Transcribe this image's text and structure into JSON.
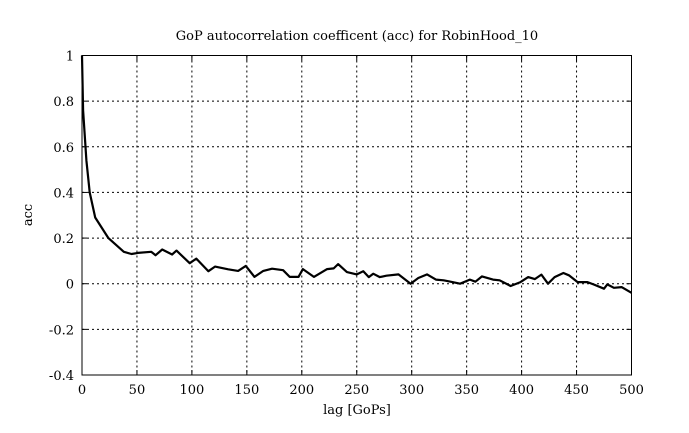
{
  "chart_data": {
    "type": "line",
    "title": "GoP autocorrelation coefficent (acc) for RobinHood_10",
    "xlabel": "lag [GoPs]",
    "ylabel": "acc",
    "xlim": [
      0,
      500
    ],
    "ylim": [
      -0.4,
      1
    ],
    "xticks": [
      0,
      50,
      100,
      150,
      200,
      250,
      300,
      350,
      400,
      450,
      500
    ],
    "xtick_labels": [
      "0",
      "50",
      "100",
      "150",
      "200",
      "250",
      "300",
      "350",
      "400",
      "450",
      "500"
    ],
    "yticks": [
      -0.4,
      -0.2,
      0,
      0.2,
      0.4,
      0.6,
      0.8,
      1
    ],
    "ytick_labels": [
      "-0.4",
      "-0.2",
      "0",
      "0.2",
      "0.4",
      "0.6",
      "0.8",
      "1"
    ],
    "grid": true,
    "series": [
      {
        "name": "acc",
        "color": "#000000",
        "x": [
          0,
          1,
          4,
          7,
          12,
          24,
          38,
          45,
          51,
          63,
          67,
          73,
          82,
          86,
          98,
          104,
          115,
          121,
          133,
          142,
          149,
          157,
          165,
          173,
          183,
          189,
          197,
          201,
          211,
          223,
          229,
          233,
          241,
          250,
          256,
          261,
          265,
          271,
          277,
          288,
          299,
          306,
          314,
          322,
          329,
          337,
          344,
          353,
          358,
          364,
          374,
          380,
          390,
          399,
          406,
          412,
          418,
          424,
          430,
          438,
          443,
          451,
          460,
          466,
          475,
          478,
          484,
          491,
          500
        ],
        "y": [
          1.0,
          0.76,
          0.54,
          0.4,
          0.29,
          0.2,
          0.14,
          0.13,
          0.135,
          0.14,
          0.125,
          0.15,
          0.128,
          0.145,
          0.09,
          0.11,
          0.055,
          0.075,
          0.063,
          0.056,
          0.078,
          0.03,
          0.056,
          0.066,
          0.059,
          0.03,
          0.03,
          0.064,
          0.03,
          0.064,
          0.067,
          0.086,
          0.051,
          0.041,
          0.055,
          0.029,
          0.044,
          0.029,
          0.035,
          0.041,
          0.0,
          0.025,
          0.041,
          0.018,
          0.015,
          0.007,
          0.0,
          0.018,
          0.009,
          0.032,
          0.018,
          0.015,
          -0.01,
          0.007,
          0.029,
          0.02,
          0.04,
          0.0,
          0.029,
          0.047,
          0.037,
          0.007,
          0.007,
          -0.004,
          -0.022,
          -0.003,
          -0.018,
          -0.015,
          -0.04
        ]
      }
    ]
  }
}
